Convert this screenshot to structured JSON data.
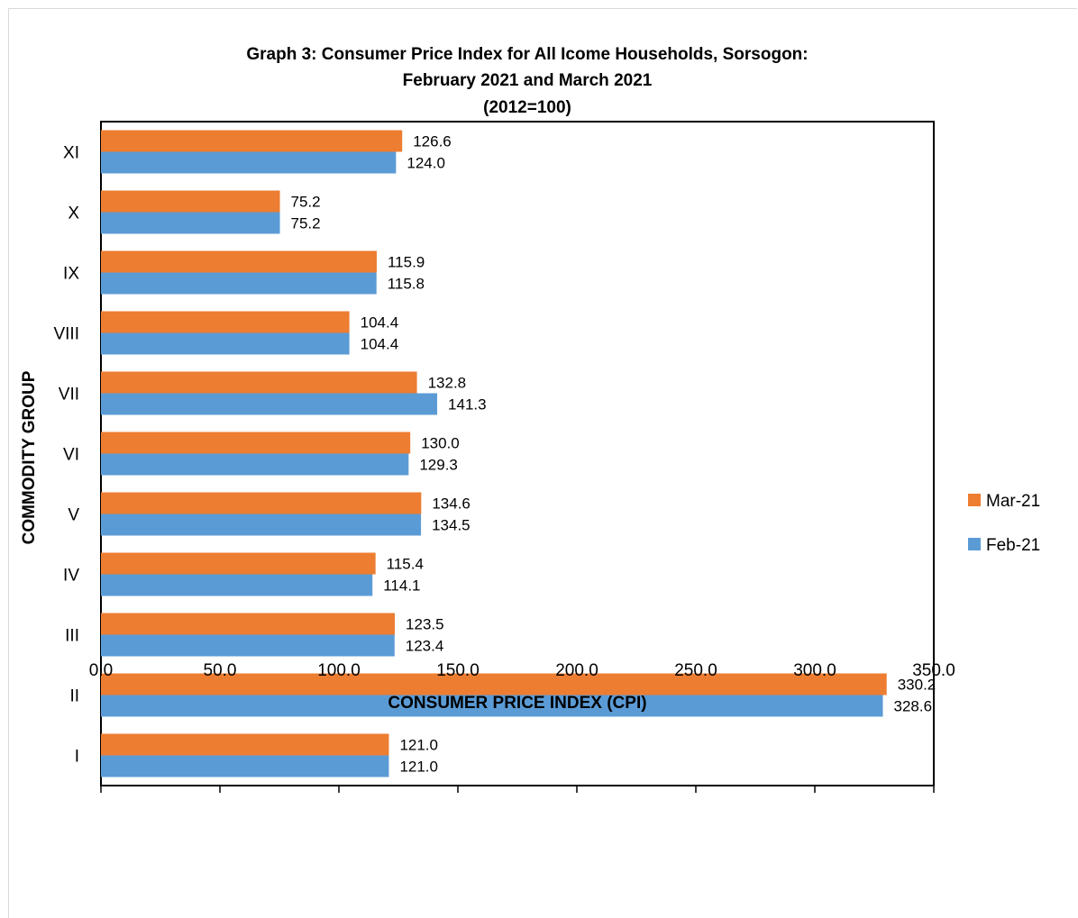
{
  "chart_data": {
    "type": "bar",
    "orientation": "horizontal",
    "title": [
      "Graph 3:  Consumer Price Index for All Icome Households, Sorsogon:",
      "February 2021 and March 2021",
      "(2012=100)"
    ],
    "xlabel": "CONSUMER PRICE INDEX (CPI)",
    "ylabel": "COMMODITY GROUP",
    "categories": [
      "I",
      "II",
      "III",
      "IV",
      "V",
      "VI",
      "VII",
      "VIII",
      "IX",
      "X",
      "XI"
    ],
    "series": [
      {
        "name": "Mar-21",
        "color": "#ed7d31",
        "values": [
          121.0,
          330.2,
          123.5,
          115.4,
          134.6,
          130.0,
          132.8,
          104.4,
          115.9,
          75.2,
          126.6
        ]
      },
      {
        "name": "Feb-21",
        "color": "#5b9bd5",
        "values": [
          121.0,
          328.6,
          123.4,
          114.1,
          134.5,
          129.3,
          141.3,
          104.4,
          115.8,
          75.2,
          124.0
        ]
      }
    ],
    "xlim": [
      0,
      350
    ],
    "xticks": [
      "0.0",
      "50.0",
      "100.0",
      "150.0",
      "200.0",
      "250.0",
      "300.0",
      "350.0"
    ],
    "grid": false,
    "legend_position": "right"
  }
}
